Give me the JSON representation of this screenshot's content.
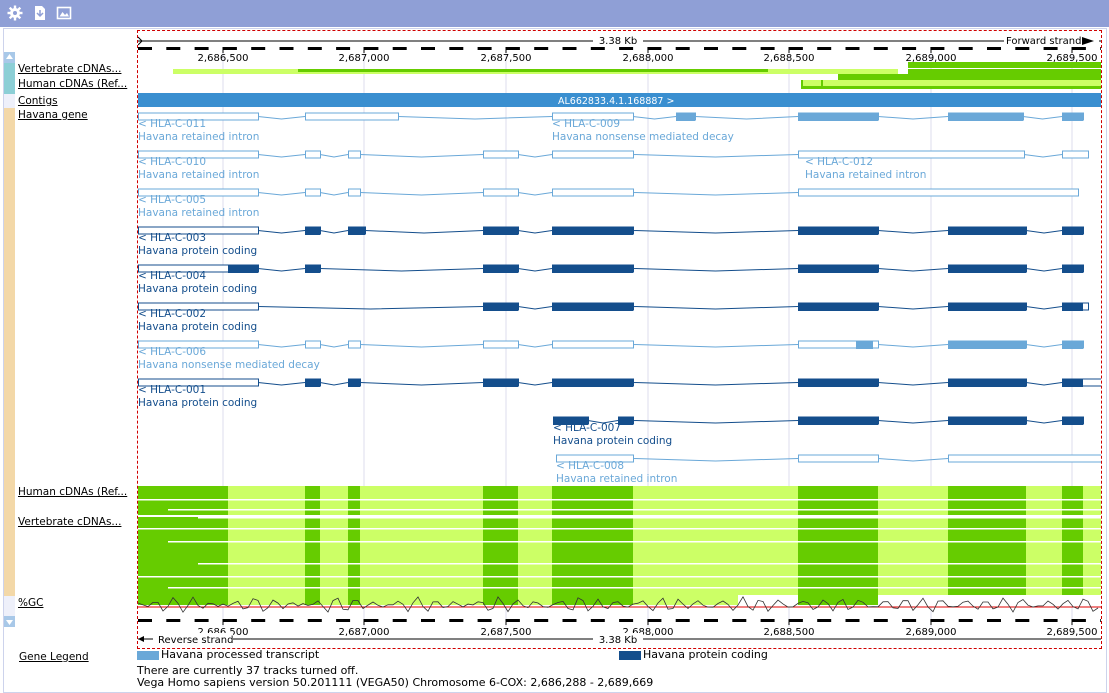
{
  "toolbar": {
    "icons": [
      "gear-icon",
      "export-icon",
      "image-icon"
    ]
  },
  "ruler": {
    "length_label": "3.38 Kb",
    "forward_strand": "Forward strand",
    "reverse_strand": "Reverse strand",
    "positions": [
      "2,686,500",
      "2,687,000",
      "2,687,500",
      "2,688,000",
      "2,688,500",
      "2,689,000",
      "2,689,500"
    ]
  },
  "tracks": {
    "vertebrate_cdnas_top": "Vertebrate cDNAs...",
    "human_cdnas_top": "Human cDNAs (Ref...",
    "contigs": "Contigs",
    "havana_gene": "Havana gene",
    "human_cdnas_bottom": "Human cDNAs (Ref...",
    "vertebrate_cdnas_bottom": "Vertebrate cDNAs...",
    "gc": "%GC"
  },
  "contig_label": "AL662833.4.1.168887 >",
  "transcripts": [
    {
      "name": "< HLA-C-011",
      "type": "Havana retained intron"
    },
    {
      "name": "< HLA-C-009",
      "type": "Havana nonsense mediated decay"
    },
    {
      "name": "< HLA-C-010",
      "type": "Havana retained intron"
    },
    {
      "name": "< HLA-C-012",
      "type": "Havana retained intron"
    },
    {
      "name": "< HLA-C-005",
      "type": "Havana retained intron"
    },
    {
      "name": "< HLA-C-003",
      "type": "Havana protein coding"
    },
    {
      "name": "< HLA-C-004",
      "type": "Havana protein coding"
    },
    {
      "name": "< HLA-C-002",
      "type": "Havana protein coding"
    },
    {
      "name": "< HLA-C-006",
      "type": "Havana nonsense mediated decay"
    },
    {
      "name": "< HLA-C-001",
      "type": "Havana protein coding"
    },
    {
      "name": "< HLA-C-007",
      "type": "Havana protein coding"
    },
    {
      "name": "< HLA-C-008",
      "type": "Havana retained intron"
    }
  ],
  "legend": {
    "title": "Gene Legend",
    "items": [
      {
        "label": "Havana processed transcript",
        "color": "#6aa8d8"
      },
      {
        "label": "Havana protein coding",
        "color": "#144e8c"
      }
    ]
  },
  "footer": {
    "tracks_off": "There are currently 37 tracks turned off.",
    "version": "Vega Homo sapiens version 50.201111 (VEGA50) Chromosome 6-COX: 2,686,288 - 2,689,669"
  },
  "colors": {
    "toolbar": "#8f9fd6",
    "contig": "#3a8fd0",
    "processed": "#6aa8d8",
    "coding": "#144e8c",
    "cdna_dark": "#66cc00",
    "cdna_light": "#ccff66"
  }
}
